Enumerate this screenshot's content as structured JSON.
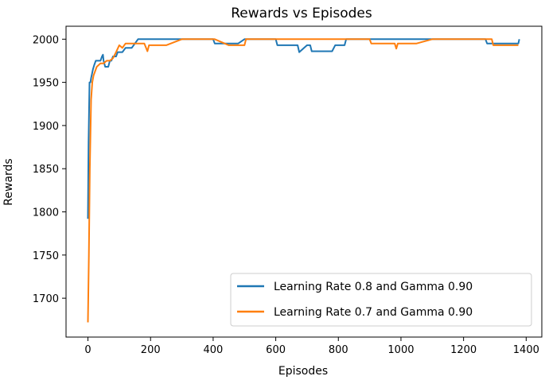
{
  "chart_data": {
    "type": "line",
    "title": "Rewards vs Episodes",
    "xlabel": "Episodes",
    "ylabel": "Rewards",
    "xlim": [
      -70,
      1450
    ],
    "ylim": [
      1655,
      2015
    ],
    "xticks": [
      0,
      200,
      400,
      600,
      800,
      1000,
      1200,
      1400
    ],
    "yticks": [
      1700,
      1750,
      1800,
      1850,
      1900,
      1950,
      2000
    ],
    "grid": false,
    "legend_position": "lower-right",
    "series": [
      {
        "name": "Learning Rate 0.8 and Gamma 0.90",
        "color": "#1f77b4",
        "x": [
          0,
          2,
          5,
          8,
          10,
          13,
          16,
          20,
          25,
          30,
          35,
          40,
          45,
          48,
          50,
          55,
          60,
          65,
          70,
          75,
          80,
          90,
          95,
          100,
          110,
          120,
          130,
          140,
          150,
          160,
          180,
          200,
          250,
          300,
          350,
          400,
          405,
          430,
          480,
          500,
          505,
          550,
          600,
          605,
          650,
          670,
          675,
          700,
          710,
          715,
          750,
          780,
          790,
          800,
          820,
          825,
          850,
          900,
          950,
          1000,
          1050,
          1080,
          1100,
          1150,
          1200,
          1250,
          1270,
          1275,
          1300,
          1350,
          1375,
          1378
        ],
        "y": [
          1792,
          1880,
          1950,
          1950,
          1955,
          1960,
          1965,
          1970,
          1975,
          1975,
          1975,
          1975,
          1980,
          1982,
          1975,
          1968,
          1968,
          1968,
          1975,
          1975,
          1980,
          1980,
          1985,
          1985,
          1985,
          1990,
          1990,
          1990,
          1995,
          2000,
          2000,
          2000,
          2000,
          2000,
          2000,
          2000,
          1995,
          1995,
          1995,
          2000,
          2000,
          2000,
          2000,
          1993,
          1993,
          1993,
          1985,
          1993,
          1993,
          1986,
          1986,
          1986,
          1993,
          1993,
          1993,
          2000,
          2000,
          2000,
          2000,
          2000,
          2000,
          2000,
          2000,
          2000,
          2000,
          2000,
          2000,
          1995,
          1995,
          1995,
          1995,
          2000
        ]
      },
      {
        "name": "Learning Rate 0.7 and Gamma 0.90",
        "color": "#ff7f0e",
        "x": [
          0,
          3,
          6,
          10,
          14,
          18,
          22,
          28,
          34,
          40,
          50,
          60,
          70,
          80,
          90,
          100,
          110,
          120,
          150,
          180,
          190,
          195,
          200,
          250,
          300,
          350,
          400,
          405,
          450,
          500,
          505,
          550,
          600,
          650,
          700,
          750,
          800,
          850,
          900,
          905,
          950,
          980,
          985,
          990,
          1000,
          1050,
          1100,
          1150,
          1200,
          1250,
          1290,
          1295,
          1300,
          1350,
          1375
        ],
        "y": [
          1672,
          1750,
          1850,
          1930,
          1950,
          1958,
          1962,
          1968,
          1970,
          1972,
          1972,
          1975,
          1975,
          1978,
          1985,
          1993,
          1990,
          1995,
          1995,
          1995,
          1986,
          1993,
          1993,
          1993,
          2000,
          2000,
          2000,
          2000,
          1993,
          1993,
          2000,
          2000,
          2000,
          2000,
          2000,
          2000,
          2000,
          2000,
          2000,
          1995,
          1995,
          1995,
          1989,
          1995,
          1995,
          1995,
          2000,
          2000,
          2000,
          2000,
          2000,
          1993,
          1993,
          1993,
          1993
        ]
      }
    ]
  }
}
